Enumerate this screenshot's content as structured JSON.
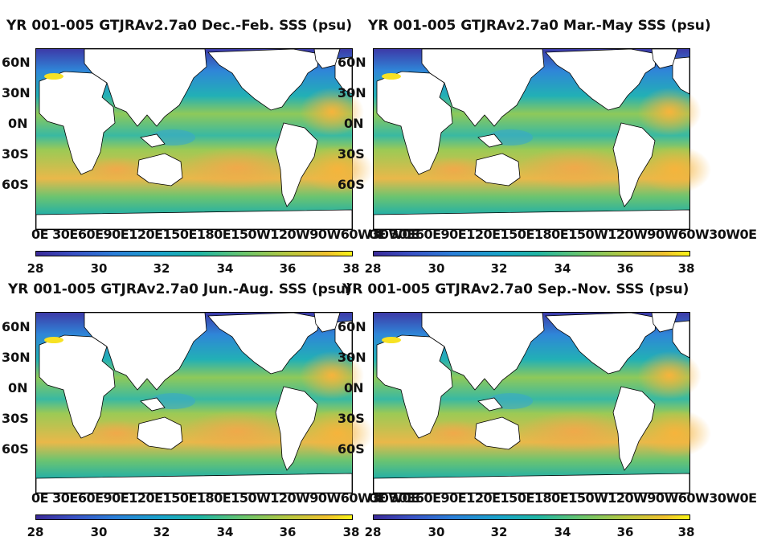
{
  "panels": [
    {
      "title": "YR 001-005 GTJRAv2.7a0 Dec.-Feb. SSS (psu)"
    },
    {
      "title": "YR 001-005 GTJRAv2.7a0 Mar.-May SSS (psu)"
    },
    {
      "title": "YR 001-005 GTJRAv2.7a0 Jun.-Aug. SSS (psu)"
    },
    {
      "title": "YR 001-005 GTJRAv2.7a0 Sep.-Nov. SSS (psu)"
    }
  ],
  "lat_labels": [
    "60N",
    "30N",
    "0N",
    "30S",
    "60S"
  ],
  "lon_labels": "0E 30E60E90E120E150E180E150W120W90W60W30W0E",
  "colorbar_ticks": [
    "28",
    "30",
    "32",
    "34",
    "36",
    "38"
  ],
  "colors": {
    "low": "#3b2a98",
    "mid": "#21b6a4",
    "high": "#f9f417",
    "land": "#ffffff"
  }
}
